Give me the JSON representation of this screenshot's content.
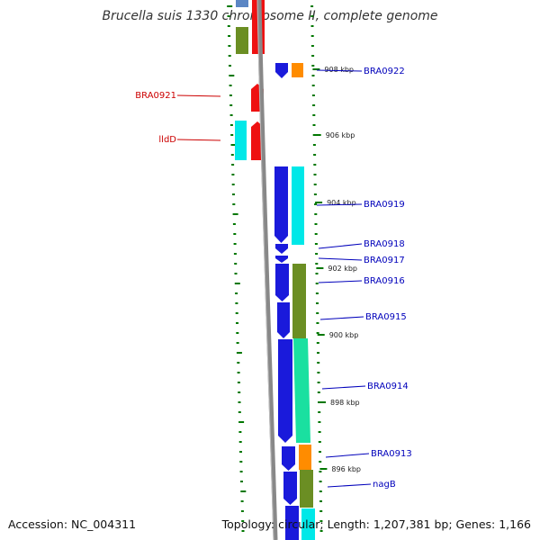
{
  "title": "Brucella suis 1330 chromosome II, complete genome",
  "accession": "Accession: NC_004311",
  "topology": "Topology: circular; Length: 1,207,381 bp; Genes: 1,166",
  "colors": {
    "forward_label": "#cc0000",
    "reverse_label": "#0000bb",
    "backbone": "#888888",
    "tick": "#007700"
  },
  "kbp_labels": [
    "908 kbp",
    "906 kbp",
    "904 kbp",
    "902 kbp",
    "900 kbp",
    "898 kbp",
    "896 kbp"
  ],
  "gene_labels": [
    "BRA0922",
    "BRA0921",
    "lldD",
    "BRA0919",
    "BRA0918",
    "BRA0917",
    "BRA0916",
    "BRA0915",
    "BRA0914",
    "BRA0913",
    "nagB"
  ]
}
